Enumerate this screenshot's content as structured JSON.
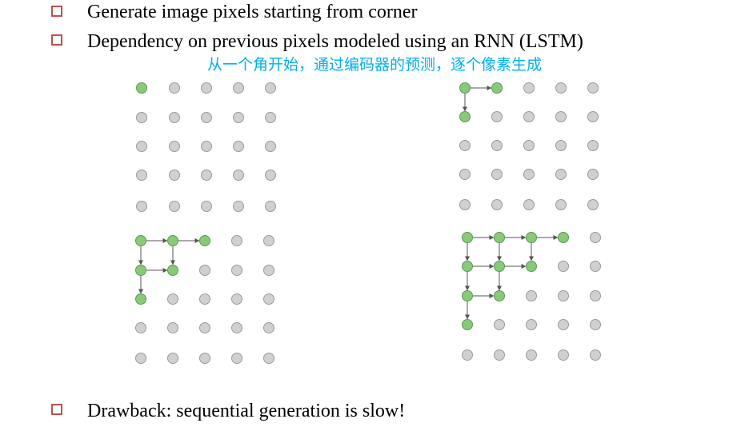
{
  "bullets": [
    "Generate image pixels starting from corner",
    "Dependency on previous pixels modeled using an RNN (LSTM)",
    "Drawback: sequential generation is slow!"
  ],
  "subtitle": "从一个角开始，通过编码器的预测，逐个像素生成",
  "colors": {
    "bullet_box": "#c0504d",
    "subtitle": "#00b0f0",
    "pixel_active": "#8ac97a",
    "pixel_active_stroke": "#5a9a52",
    "pixel_inactive": "#d0d0d0",
    "pixel_inactive_stroke": "#9a9a9a",
    "arrow": "#555555"
  },
  "grids": [
    {
      "name": "grid-step-1",
      "active": [
        [
          0,
          0
        ]
      ],
      "arrows": []
    },
    {
      "name": "grid-step-2",
      "active": [
        [
          0,
          0
        ],
        [
          0,
          1
        ],
        [
          1,
          0
        ]
      ],
      "arrows": [
        [
          [
            0,
            0
          ],
          [
            0,
            1
          ]
        ],
        [
          [
            0,
            0
          ],
          [
            1,
            0
          ]
        ]
      ]
    },
    {
      "name": "grid-step-3",
      "active": [
        [
          0,
          0
        ],
        [
          0,
          1
        ],
        [
          0,
          2
        ],
        [
          1,
          0
        ],
        [
          1,
          1
        ],
        [
          2,
          0
        ]
      ],
      "arrows": [
        [
          [
            0,
            0
          ],
          [
            0,
            1
          ]
        ],
        [
          [
            0,
            1
          ],
          [
            0,
            2
          ]
        ],
        [
          [
            0,
            0
          ],
          [
            1,
            0
          ]
        ],
        [
          [
            0,
            1
          ],
          [
            1,
            1
          ]
        ],
        [
          [
            1,
            0
          ],
          [
            1,
            1
          ]
        ],
        [
          [
            1,
            0
          ],
          [
            2,
            0
          ]
        ]
      ]
    },
    {
      "name": "grid-step-4",
      "active": [
        [
          0,
          0
        ],
        [
          0,
          1
        ],
        [
          0,
          2
        ],
        [
          0,
          3
        ],
        [
          1,
          0
        ],
        [
          1,
          1
        ],
        [
          1,
          2
        ],
        [
          2,
          0
        ],
        [
          2,
          1
        ],
        [
          3,
          0
        ]
      ],
      "arrows": [
        [
          [
            0,
            0
          ],
          [
            0,
            1
          ]
        ],
        [
          [
            0,
            1
          ],
          [
            0,
            2
          ]
        ],
        [
          [
            0,
            2
          ],
          [
            0,
            3
          ]
        ],
        [
          [
            0,
            0
          ],
          [
            1,
            0
          ]
        ],
        [
          [
            0,
            1
          ],
          [
            1,
            1
          ]
        ],
        [
          [
            0,
            2
          ],
          [
            1,
            2
          ]
        ],
        [
          [
            1,
            0
          ],
          [
            1,
            1
          ]
        ],
        [
          [
            1,
            1
          ],
          [
            1,
            2
          ]
        ],
        [
          [
            1,
            0
          ],
          [
            2,
            0
          ]
        ],
        [
          [
            1,
            1
          ],
          [
            2,
            1
          ]
        ],
        [
          [
            2,
            0
          ],
          [
            2,
            1
          ]
        ],
        [
          [
            2,
            0
          ],
          [
            3,
            0
          ]
        ]
      ]
    }
  ]
}
